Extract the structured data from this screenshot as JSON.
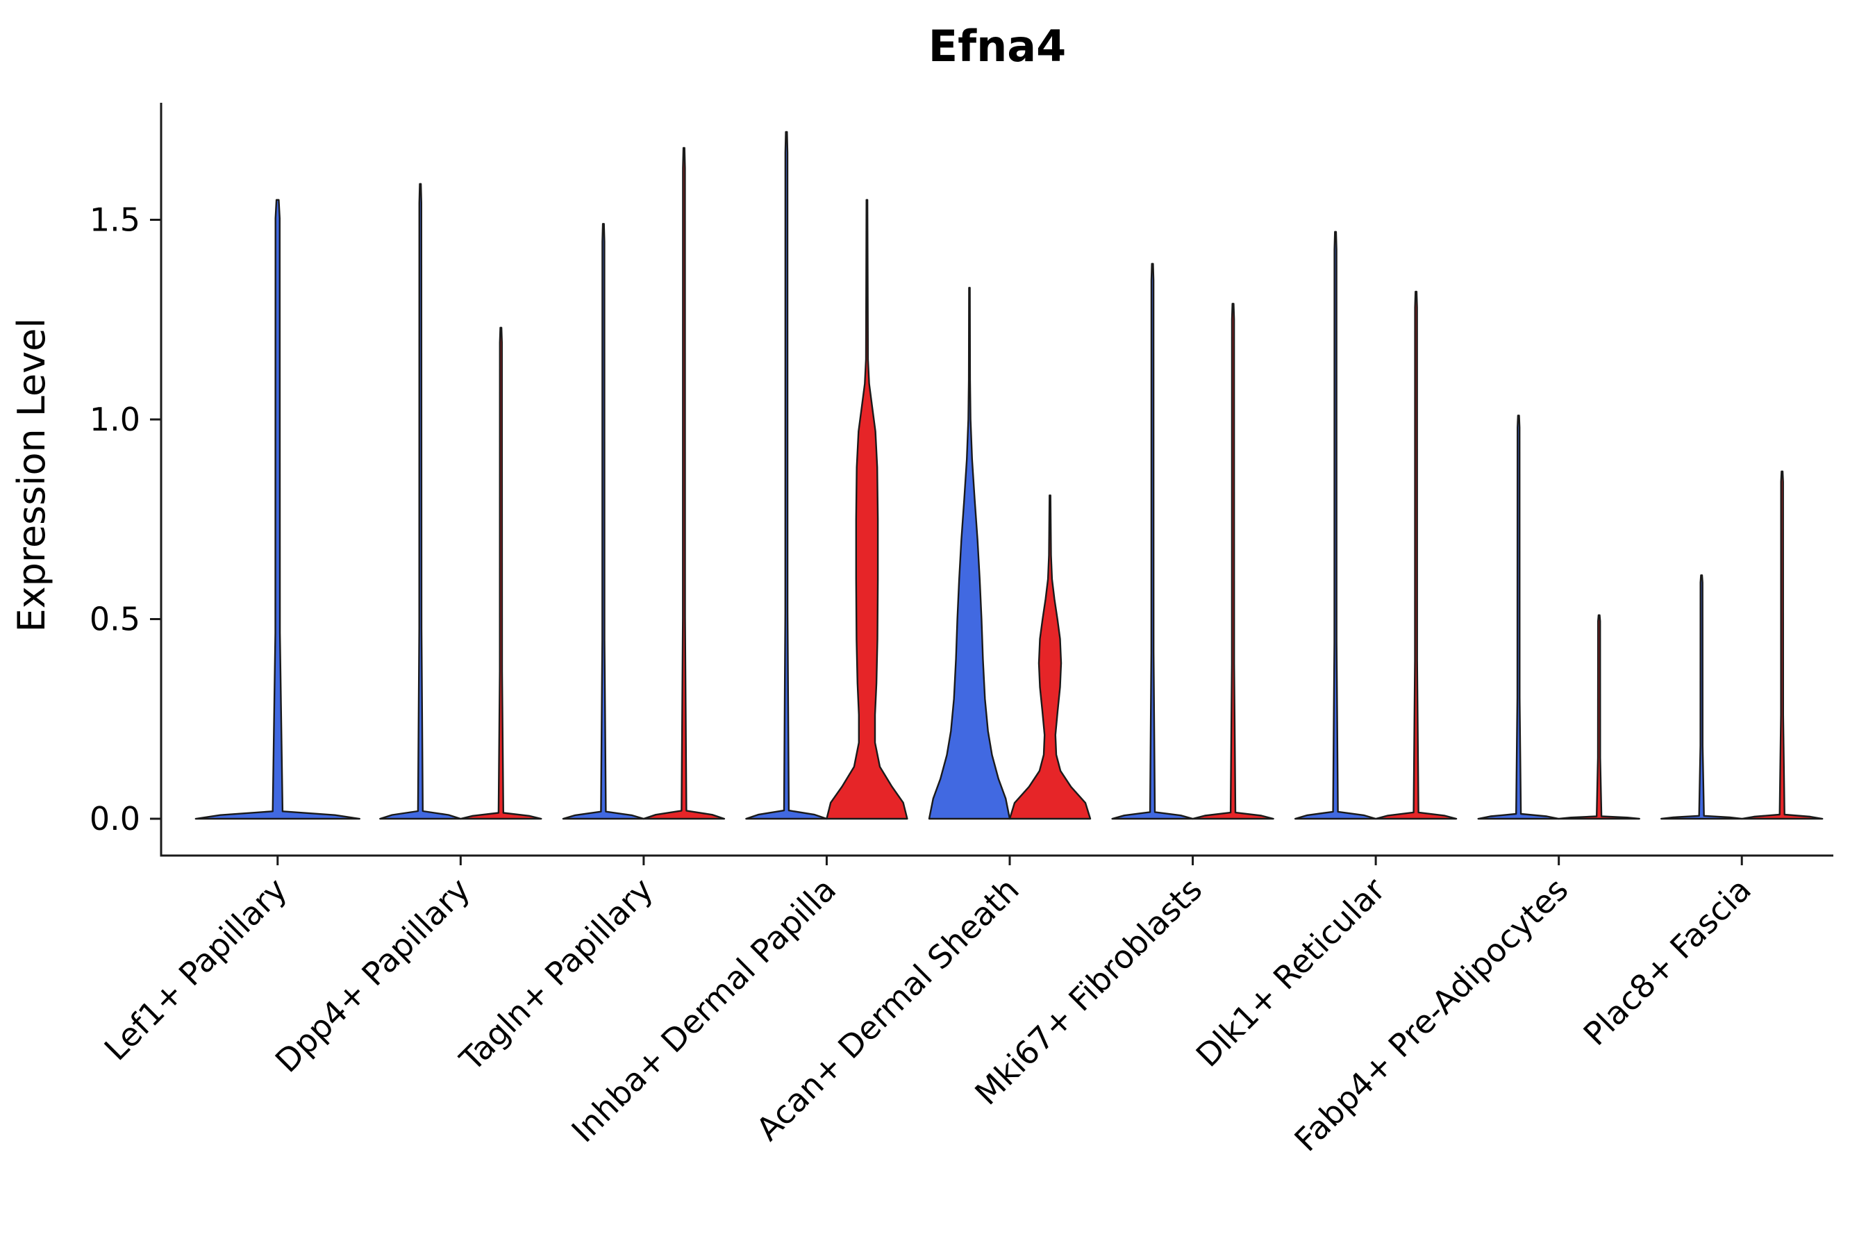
{
  "chart_data": {
    "type": "violin",
    "title": "Efna4",
    "ylabel": "Expression Level",
    "xlabel": "",
    "grid": false,
    "legend": "none",
    "ylim": [
      -0.09,
      1.79
    ],
    "yticks": {
      "values": [
        0,
        0.5,
        1.0,
        1.5
      ],
      "labels": [
        "0.0",
        "0.5",
        "1.0",
        "1.5"
      ]
    },
    "categories": [
      "Lef1+ Papillary",
      "Dpp4+ Papillary",
      "Tagln+ Papillary",
      "Inhba+ Dermal Papilla",
      "Acan+ Dermal Sheath",
      "Mki67+ Fibroblasts",
      "Dlk1+ Reticular",
      "Fabp4+ Pre-Adipocytes",
      "Plac8+ Fascia"
    ],
    "colors": {
      "blue": "#4169E1",
      "red": "#E62528",
      "stroke": "#1A1A1A"
    },
    "layout": {
      "dodge": 58,
      "violin_halfwidth": 58,
      "center_halfwidth": 118
    },
    "profiles": {
      "spike": [
        [
          0,
          1.0
        ],
        [
          0.006,
          0.7
        ],
        [
          0.012,
          0.06
        ],
        [
          0.3,
          0.028
        ],
        [
          0.97,
          0.026
        ],
        [
          1,
          0.014
        ]
      ],
      "teardrop": [
        [
          0,
          1.0
        ],
        [
          0.038,
          0.9
        ],
        [
          0.075,
          0.72
        ],
        [
          0.12,
          0.56
        ],
        [
          0.165,
          0.46
        ],
        [
          0.226,
          0.385
        ],
        [
          0.301,
          0.335
        ],
        [
          0.376,
          0.3
        ],
        [
          0.451,
          0.255
        ],
        [
          0.526,
          0.2
        ],
        [
          0.602,
          0.13
        ],
        [
          0.677,
          0.065
        ],
        [
          0.752,
          0.028
        ],
        [
          0.827,
          0.015
        ],
        [
          1,
          0.01
        ]
      ],
      "bulge_high": [
        [
          0,
          1.0
        ],
        [
          0.026,
          0.9
        ],
        [
          0.052,
          0.62
        ],
        [
          0.084,
          0.32
        ],
        [
          0.123,
          0.2
        ],
        [
          0.168,
          0.2
        ],
        [
          0.219,
          0.235
        ],
        [
          0.29,
          0.26
        ],
        [
          0.387,
          0.27
        ],
        [
          0.484,
          0.27
        ],
        [
          0.568,
          0.255
        ],
        [
          0.626,
          0.21
        ],
        [
          0.665,
          0.13
        ],
        [
          0.703,
          0.055
        ],
        [
          0.742,
          0.025
        ],
        [
          1,
          0.012
        ]
      ],
      "bulge_mid": [
        [
          0,
          1.0
        ],
        [
          0.049,
          0.88
        ],
        [
          0.099,
          0.52
        ],
        [
          0.148,
          0.26
        ],
        [
          0.198,
          0.155
        ],
        [
          0.259,
          0.135
        ],
        [
          0.333,
          0.19
        ],
        [
          0.407,
          0.25
        ],
        [
          0.481,
          0.275
        ],
        [
          0.556,
          0.25
        ],
        [
          0.617,
          0.185
        ],
        [
          0.679,
          0.11
        ],
        [
          0.741,
          0.05
        ],
        [
          0.815,
          0.025
        ],
        [
          1,
          0.012
        ]
      ]
    },
    "violins": [
      {
        "category_index": 0,
        "category": "Lef1+ Papillary",
        "position": "center",
        "color": "blue",
        "max": 1.55,
        "shape": "spike"
      },
      {
        "category_index": 1,
        "category": "Dpp4+ Papillary",
        "position": "left",
        "color": "blue",
        "max": 1.59,
        "shape": "spike"
      },
      {
        "category_index": 1,
        "category": "Dpp4+ Papillary",
        "position": "right",
        "color": "red",
        "max": 1.23,
        "shape": "spike"
      },
      {
        "category_index": 2,
        "category": "Tagln+ Papillary",
        "position": "left",
        "color": "blue",
        "max": 1.49,
        "shape": "spike"
      },
      {
        "category_index": 2,
        "category": "Tagln+ Papillary",
        "position": "right",
        "color": "red",
        "max": 1.68,
        "shape": "spike"
      },
      {
        "category_index": 3,
        "category": "Inhba+ Dermal Papilla",
        "position": "left",
        "color": "blue",
        "max": 1.72,
        "shape": "spike"
      },
      {
        "category_index": 3,
        "category": "Inhba+ Dermal Papilla",
        "position": "right",
        "color": "red",
        "max": 1.55,
        "shape": "bulge_high"
      },
      {
        "category_index": 4,
        "category": "Acan+ Dermal Sheath",
        "position": "left",
        "color": "blue",
        "max": 1.33,
        "shape": "teardrop"
      },
      {
        "category_index": 4,
        "category": "Acan+ Dermal Sheath",
        "position": "right",
        "color": "red",
        "max": 0.81,
        "shape": "bulge_mid"
      },
      {
        "category_index": 5,
        "category": "Mki67+ Fibroblasts",
        "position": "left",
        "color": "blue",
        "max": 1.39,
        "shape": "spike"
      },
      {
        "category_index": 5,
        "category": "Mki67+ Fibroblasts",
        "position": "right",
        "color": "red",
        "max": 1.29,
        "shape": "spike"
      },
      {
        "category_index": 6,
        "category": "Dlk1+ Reticular",
        "position": "left",
        "color": "blue",
        "max": 1.47,
        "shape": "spike"
      },
      {
        "category_index": 6,
        "category": "Dlk1+ Reticular",
        "position": "right",
        "color": "red",
        "max": 1.32,
        "shape": "spike"
      },
      {
        "category_index": 7,
        "category": "Fabp4+ Pre-Adipocytes",
        "position": "left",
        "color": "blue",
        "max": 1.01,
        "shape": "spike"
      },
      {
        "category_index": 7,
        "category": "Fabp4+ Pre-Adipocytes",
        "position": "right",
        "color": "red",
        "max": 0.51,
        "shape": "spike"
      },
      {
        "category_index": 8,
        "category": "Plac8+ Fascia",
        "position": "left",
        "color": "blue",
        "max": 0.61,
        "shape": "spike"
      },
      {
        "category_index": 8,
        "category": "Plac8+ Fascia",
        "position": "right",
        "color": "red",
        "max": 0.87,
        "shape": "spike"
      }
    ]
  }
}
